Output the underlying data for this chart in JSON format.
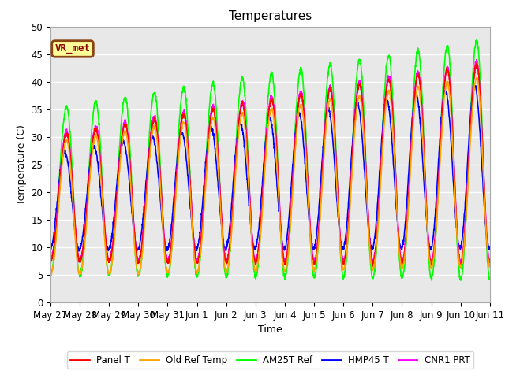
{
  "title": "Temperatures",
  "xlabel": "Time",
  "ylabel": "Temperature (C)",
  "ylim": [
    0,
    50
  ],
  "annotation_text": "VR_met",
  "annotation_box_color": "#FFFF99",
  "annotation_border_color": "#8B4513",
  "grid_color": "white",
  "bg_color": "#E8E8E8",
  "tick_labels": [
    "May 27",
    "May 28",
    "May 29",
    "May 30",
    "May 31",
    "Jun 1",
    "Jun 2",
    "Jun 3",
    "Jun 4",
    "Jun 5",
    "Jun 6",
    "Jun 7",
    "Jun 8",
    "Jun 9",
    "Jun 10",
    "Jun 11"
  ],
  "series_colors": [
    "red",
    "orange",
    "lime",
    "blue",
    "magenta"
  ],
  "series_labels": [
    "Panel T",
    "Old Ref Temp",
    "AM25T Ref",
    "HMP45 T",
    "CNR1 PRT"
  ],
  "series_lw": [
    1.2,
    1.2,
    1.2,
    1.2,
    1.2
  ],
  "figsize": [
    6.4,
    4.8
  ],
  "dpi": 100
}
